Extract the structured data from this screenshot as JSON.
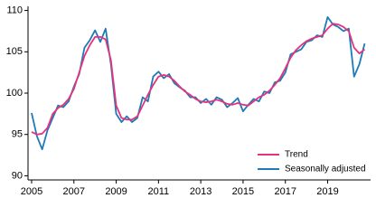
{
  "chart_data": {
    "type": "line",
    "x": [
      2005,
      2005.25,
      2005.5,
      2005.75,
      2006,
      2006.25,
      2006.5,
      2006.75,
      2007,
      2007.25,
      2007.5,
      2007.75,
      2008,
      2008.25,
      2008.5,
      2008.75,
      2009,
      2009.25,
      2009.5,
      2009.75,
      2010,
      2010.25,
      2010.5,
      2010.75,
      2011,
      2011.25,
      2011.5,
      2011.75,
      2012,
      2012.25,
      2012.5,
      2012.75,
      2013,
      2013.25,
      2013.5,
      2013.75,
      2014,
      2014.25,
      2014.5,
      2014.75,
      2015,
      2015.25,
      2015.5,
      2015.75,
      2016,
      2016.25,
      2016.5,
      2016.75,
      2017,
      2017.25,
      2017.5,
      2017.75,
      2018,
      2018.25,
      2018.5,
      2018.75,
      2019,
      2019.25,
      2019.5,
      2019.75,
      2020,
      2020.25,
      2020.5,
      2020.75
    ],
    "series": [
      {
        "name": "Trend",
        "color": "#e5337d",
        "values": [
          95.3,
          95.0,
          95.1,
          95.8,
          97.5,
          98.2,
          98.6,
          99.3,
          100.5,
          102.5,
          104.5,
          105.8,
          106.8,
          106.8,
          106.5,
          104,
          98.5,
          97,
          96.8,
          96.8,
          97.2,
          98.5,
          99.8,
          101,
          102,
          102.2,
          102,
          101.5,
          100.8,
          100.2,
          99.8,
          99.3,
          99.0,
          98.9,
          99.0,
          99.2,
          99.0,
          98.7,
          98.6,
          98.8,
          98.6,
          98.5,
          99.0,
          99.5,
          99.8,
          100.3,
          101.0,
          101.8,
          103.0,
          104.3,
          105.2,
          105.8,
          106.3,
          106.6,
          106.8,
          107.0,
          107.8,
          108.4,
          108.3,
          108.0,
          107.5,
          105.5,
          104.8,
          105.3
        ]
      },
      {
        "name": "Seasonally adjusted",
        "color": "#1f7ab8",
        "values": [
          97.6,
          94.8,
          93.2,
          95.5,
          97.0,
          98.5,
          98.3,
          99.0,
          100.8,
          102.3,
          105.5,
          106.4,
          107.6,
          106.2,
          107.8,
          103.5,
          97.5,
          96.5,
          97.2,
          96.5,
          97.0,
          99.5,
          99.0,
          102.0,
          102.6,
          101.8,
          102.3,
          101.2,
          100.7,
          100.3,
          99.5,
          99.5,
          98.8,
          99.3,
          98.6,
          99.5,
          99.2,
          98.3,
          98.8,
          99.4,
          97.8,
          98.6,
          99.3,
          99.0,
          100.2,
          100.0,
          101.3,
          101.5,
          102.5,
          104.7,
          105.0,
          105.3,
          106.2,
          106.4,
          107.0,
          106.8,
          109.2,
          108.3,
          108.0,
          107.5,
          107.8,
          102.0,
          103.5,
          106.0
        ]
      }
    ],
    "xlim": [
      2004.83,
      2021.03
    ],
    "xticks": [
      2005,
      2007,
      2009,
      2011,
      2013,
      2015,
      2017,
      2019
    ],
    "ylim": [
      89.5,
      110.5
    ],
    "yticks": [
      90,
      95,
      100,
      105,
      110
    ],
    "grid": false,
    "legend": "lower-right"
  }
}
